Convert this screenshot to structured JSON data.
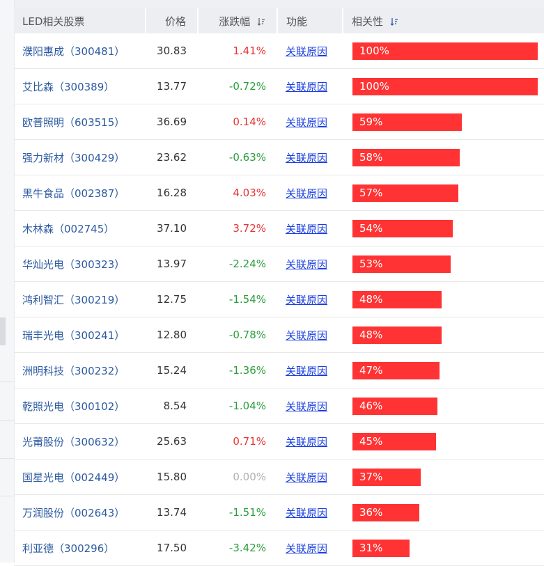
{
  "header": {
    "name": "LED相关股票",
    "price": "价格",
    "change": "涨跌幅",
    "function": "功能",
    "relevance": "相关性"
  },
  "colors": {
    "up": "#e63333",
    "down": "#2a9d3a",
    "flat": "#b0b0b0",
    "bar": "#ff3333",
    "link": "#1a3fe0"
  },
  "rows": [
    {
      "name": "濮阳惠成（300481）",
      "price": "30.83",
      "change": "1.41%",
      "trend": "up",
      "link": "关联原因",
      "relevance": "100%",
      "rel_value": 100
    },
    {
      "name": "艾比森（300389）",
      "price": "13.77",
      "change": "-0.72%",
      "trend": "down",
      "link": "关联原因",
      "relevance": "100%",
      "rel_value": 100
    },
    {
      "name": "欧普照明（603515）",
      "price": "36.69",
      "change": "0.14%",
      "trend": "up",
      "link": "关联原因",
      "relevance": "59%",
      "rel_value": 59
    },
    {
      "name": "强力新材（300429）",
      "price": "23.62",
      "change": "-0.63%",
      "trend": "down",
      "link": "关联原因",
      "relevance": "58%",
      "rel_value": 58
    },
    {
      "name": "黑牛食品（002387）",
      "price": "16.28",
      "change": "4.03%",
      "trend": "up",
      "link": "关联原因",
      "relevance": "57%",
      "rel_value": 57
    },
    {
      "name": "木林森（002745）",
      "price": "37.10",
      "change": "3.72%",
      "trend": "up",
      "link": "关联原因",
      "relevance": "54%",
      "rel_value": 54
    },
    {
      "name": "华灿光电（300323）",
      "price": "13.97",
      "change": "-2.24%",
      "trend": "down",
      "link": "关联原因",
      "relevance": "53%",
      "rel_value": 53
    },
    {
      "name": "鸿利智汇（300219）",
      "price": "12.75",
      "change": "-1.54%",
      "trend": "down",
      "link": "关联原因",
      "relevance": "48%",
      "rel_value": 48
    },
    {
      "name": "瑞丰光电（300241）",
      "price": "12.80",
      "change": "-0.78%",
      "trend": "down",
      "link": "关联原因",
      "relevance": "48%",
      "rel_value": 48
    },
    {
      "name": "洲明科技（300232）",
      "price": "15.24",
      "change": "-1.36%",
      "trend": "down",
      "link": "关联原因",
      "relevance": "47%",
      "rel_value": 47
    },
    {
      "name": "乾照光电（300102）",
      "price": "8.54",
      "change": "-1.04%",
      "trend": "down",
      "link": "关联原因",
      "relevance": "46%",
      "rel_value": 46
    },
    {
      "name": "光莆股份（300632）",
      "price": "25.63",
      "change": "0.71%",
      "trend": "up",
      "link": "关联原因",
      "relevance": "45%",
      "rel_value": 45
    },
    {
      "name": "国星光电（002449）",
      "price": "15.80",
      "change": "0.00%",
      "trend": "flat",
      "link": "关联原因",
      "relevance": "37%",
      "rel_value": 37
    },
    {
      "name": "万润股份（002643）",
      "price": "13.74",
      "change": "-1.51%",
      "trend": "down",
      "link": "关联原因",
      "relevance": "36%",
      "rel_value": 36
    },
    {
      "name": "利亚德（300296）",
      "price": "17.50",
      "change": "-3.42%",
      "trend": "down",
      "link": "关联原因",
      "relevance": "31%",
      "rel_value": 31
    }
  ]
}
